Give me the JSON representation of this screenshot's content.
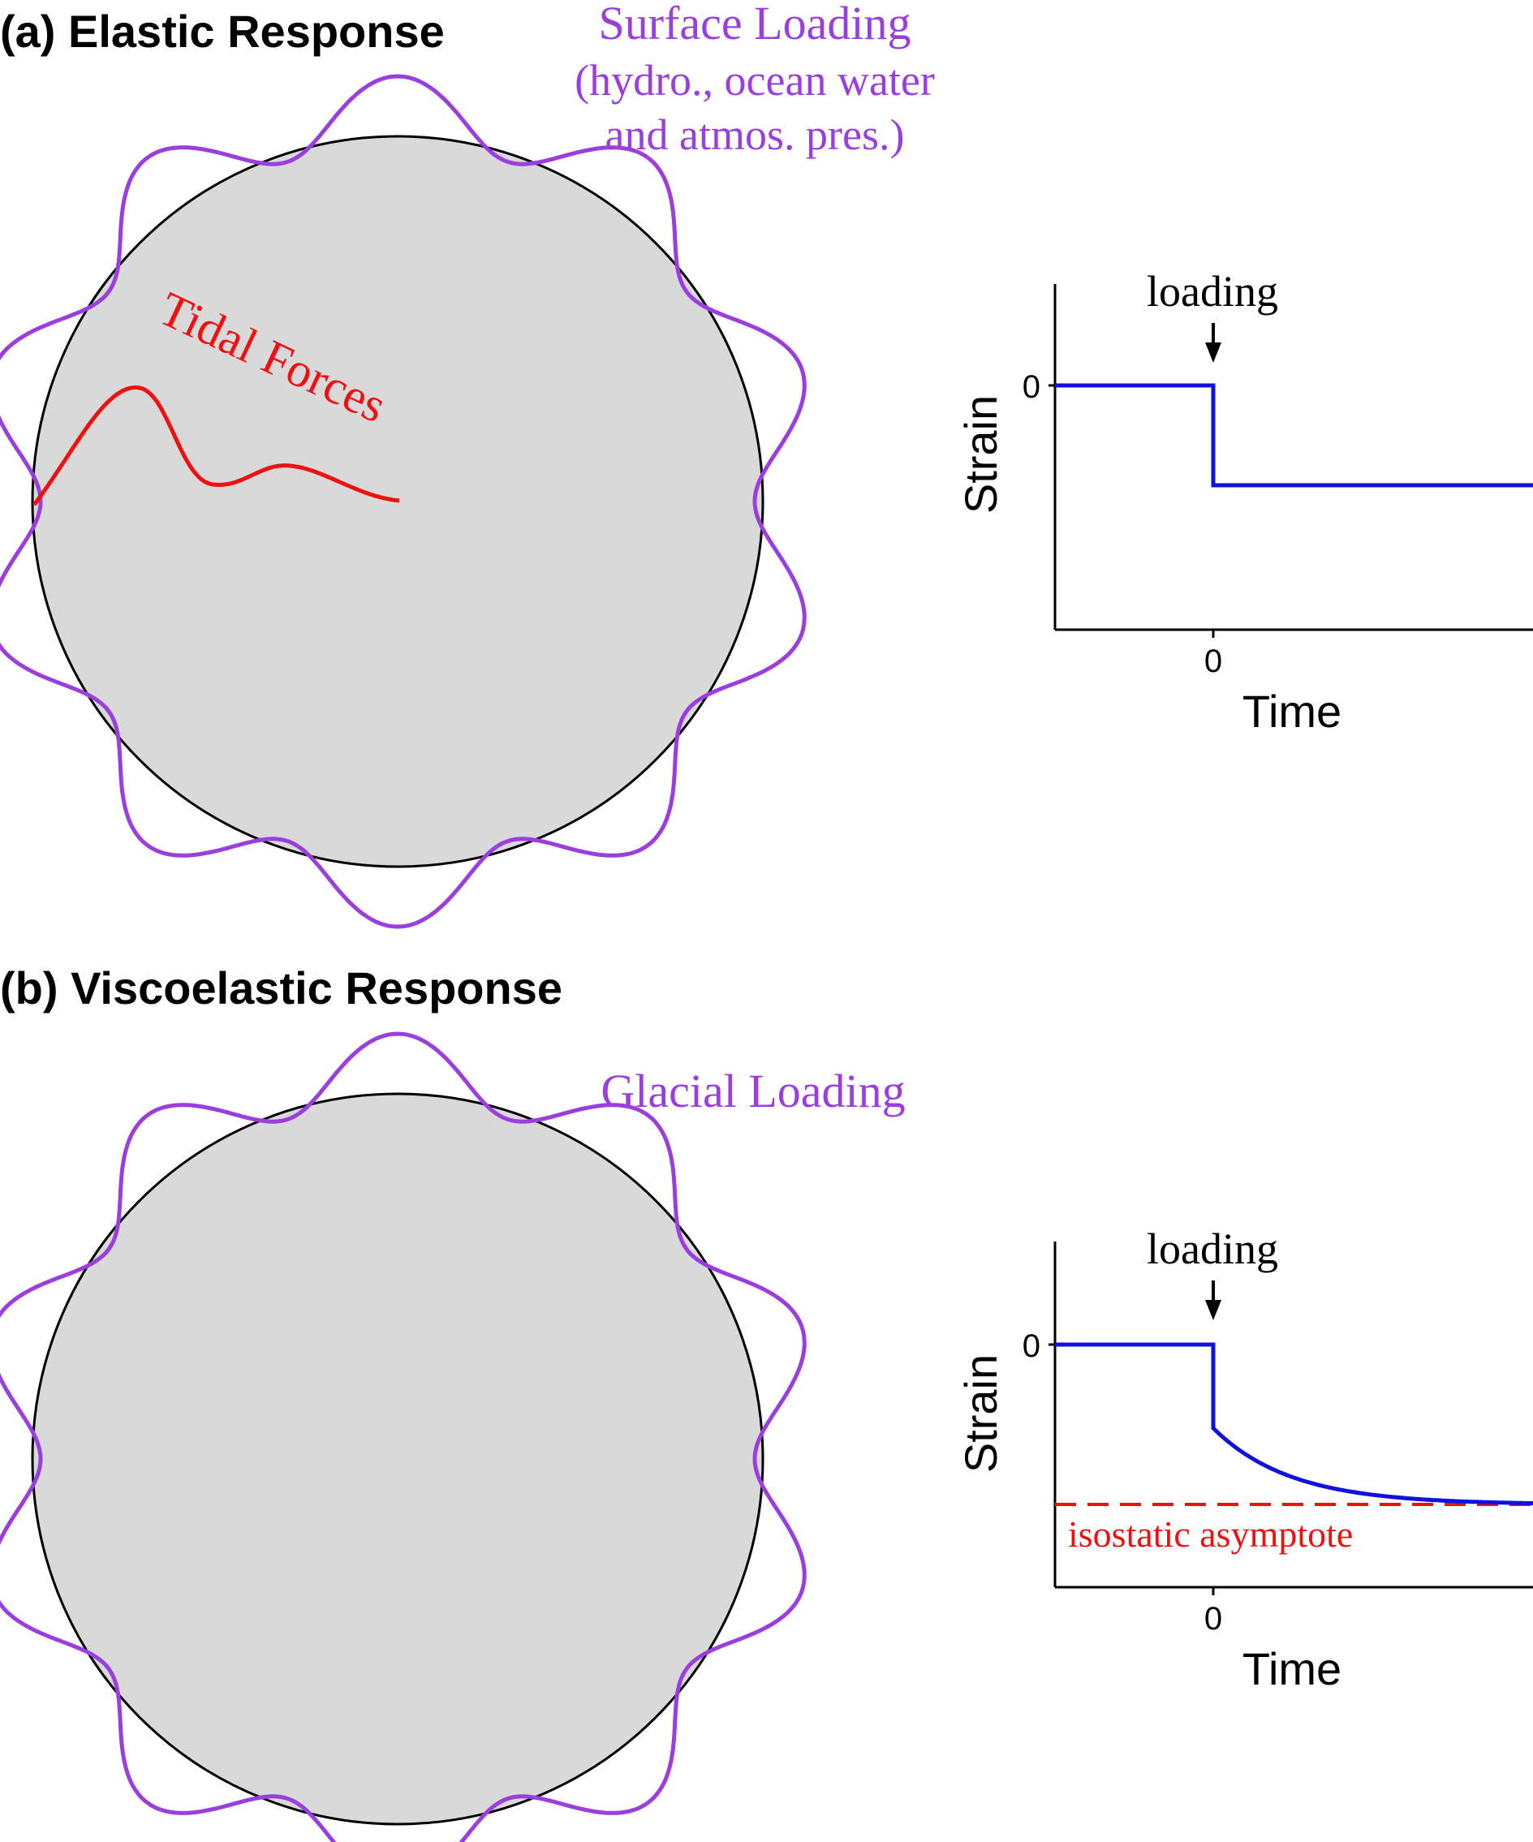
{
  "colors": {
    "purple": "#9a3ee0",
    "red": "#ee1111",
    "blue": "#1111dd",
    "earth_fill": "#d9d9d9",
    "black": "#000000"
  },
  "panel_a": {
    "title": "(a) Elastic Response",
    "surface_label": "Surface Loading",
    "surface_sub1": "(hydro., ocean water",
    "surface_sub2": "and atmos. pres.)",
    "tidal_label": "Tidal Forces",
    "graph": {
      "annotation": "loading",
      "ytick": "0",
      "xtick": "0",
      "ylabel": "Strain",
      "xlabel": "Time"
    }
  },
  "panel_b": {
    "title": "(b) Viscoelastic Response",
    "glacial_label": "Glacial Loading",
    "graph": {
      "annotation": "loading",
      "ytick": "0",
      "xtick": "0",
      "ylabel": "Strain",
      "xlabel": "Time",
      "asymptote_label": "isostatic asymptote"
    }
  }
}
